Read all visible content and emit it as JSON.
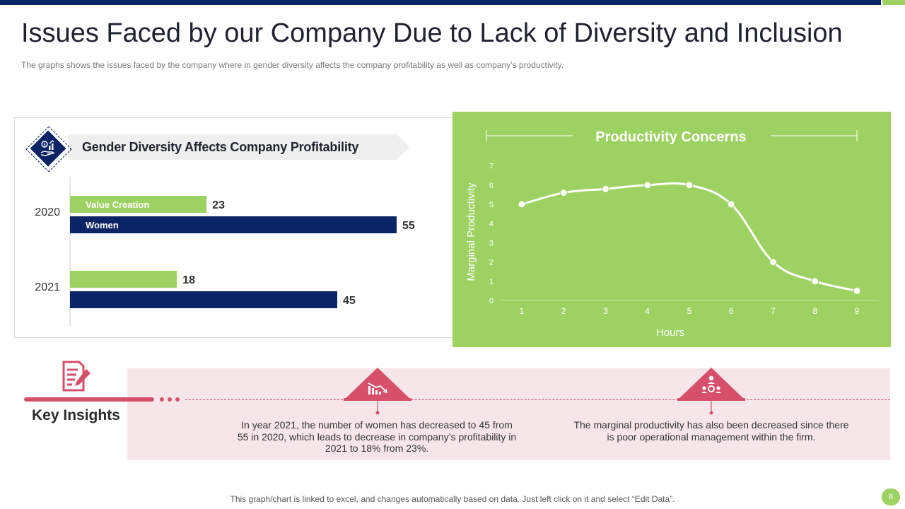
{
  "slide": {
    "title": "Issues Faced by our Company Due to Lack of Diversity and Inclusion",
    "subtitle": "The graphs shows the issues faced by the company where in gender diversity affects the company profitability as well as company’s productivity.",
    "footer": "This graph/chart is linked to excel, and changes automatically based on data. Just left click on it and select “Edit Data”.",
    "page_number": "8"
  },
  "colors": {
    "navy": "#0b2466",
    "green": "#9dd262",
    "accent_red": "#d64f6b",
    "insight_bg": "#f7e6e9"
  },
  "icons": {
    "diamond": "dollar-hand-growth-icon",
    "doc": "document-edit-icon",
    "chart_down": "chart-decrease-icon",
    "team": "team-management-icon"
  },
  "insights": {
    "heading": "Key Insights",
    "items": [
      "In year 2021, the number of women has decreased to 45 from 55 in 2020, which leads to decrease in company’s profitability in 2021 to 18% from 23%.",
      "The marginal productivity has also been decreased since there is poor operational management within the firm."
    ]
  },
  "chart_data": [
    {
      "type": "bar",
      "orientation": "horizontal",
      "title": "Gender Diversity Affects Company Profitability",
      "categories": [
        "2020",
        "2021"
      ],
      "series": [
        {
          "name": "Value Creation",
          "values": [
            23,
            18
          ],
          "color": "#9dd262"
        },
        {
          "name": "Women",
          "values": [
            55,
            45
          ],
          "color": "#0b2466"
        }
      ],
      "xlim": [
        0,
        60
      ],
      "legend": "inside-bars"
    },
    {
      "type": "line",
      "title": "Productivity Concerns",
      "xlabel": "Hours",
      "ylabel": "Marginal Productivity",
      "x": [
        1,
        2,
        3,
        4,
        5,
        6,
        7,
        8,
        9
      ],
      "series": [
        {
          "name": "Marginal Productivity",
          "values": [
            5,
            5.6,
            5.8,
            6,
            6,
            5,
            2,
            1,
            0.5
          ]
        }
      ],
      "ylim": [
        0,
        7
      ],
      "yticks": [
        0,
        1,
        2,
        3,
        4,
        5,
        6,
        7
      ],
      "grid": false,
      "color": "#ffffff"
    }
  ]
}
